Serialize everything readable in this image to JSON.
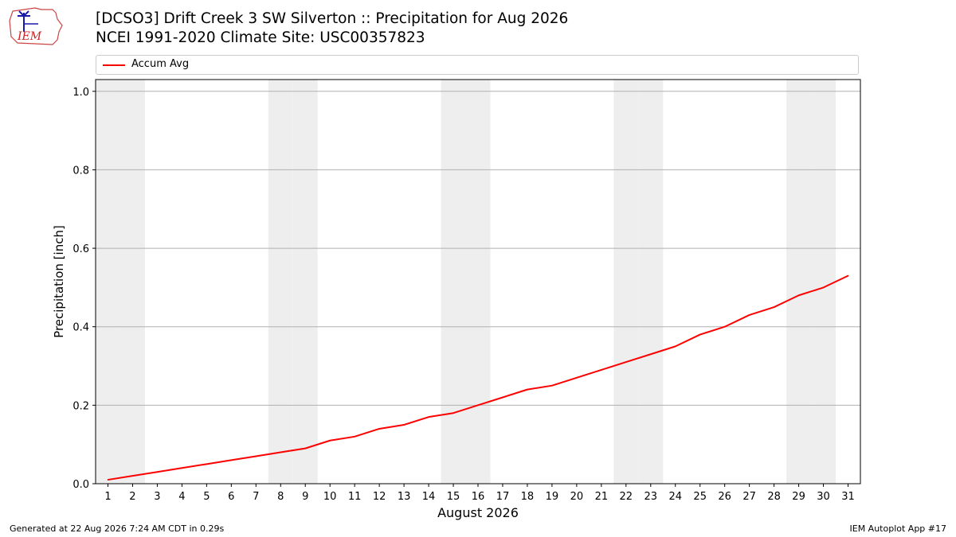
{
  "header": {
    "title_line1": "[DCSO3] Drift Creek 3 SW Silverton :: Precipitation for Aug 2026",
    "title_line2": "NCEI 1991-2020 Climate Site: USC00357823",
    "logo_text": "IEM"
  },
  "footer": {
    "generated": "Generated at 22 Aug 2026 7:24 AM CDT in 0.29s",
    "app": "IEM Autoplot App #17"
  },
  "colors": {
    "line": "#ff0000",
    "weekend_band": "#eeeeee",
    "grid": "#b0b0b0"
  },
  "chart_data": {
    "type": "line",
    "xlabel": "August 2026",
    "ylabel": "Precipitation [inch]",
    "ylim": [
      0,
      1.03
    ],
    "xlim": [
      0.5,
      31.5
    ],
    "yticks": [
      "0.0",
      "0.2",
      "0.4",
      "0.6",
      "0.8",
      "1.0"
    ],
    "x": [
      1,
      2,
      3,
      4,
      5,
      6,
      7,
      8,
      9,
      10,
      11,
      12,
      13,
      14,
      15,
      16,
      17,
      18,
      19,
      20,
      21,
      22,
      23,
      24,
      25,
      26,
      27,
      28,
      29,
      30,
      31
    ],
    "xtick_labels": [
      "1",
      "2",
      "3",
      "4",
      "5",
      "6",
      "7",
      "8",
      "9",
      "10",
      "11",
      "12",
      "13",
      "14",
      "15",
      "16",
      "17",
      "18",
      "19",
      "20",
      "21",
      "22",
      "23",
      "24",
      "25",
      "26",
      "27",
      "28",
      "29",
      "30",
      "31"
    ],
    "weekend_days": [
      1,
      2,
      8,
      9,
      15,
      16,
      22,
      23,
      29,
      30
    ],
    "grid": "horizontal",
    "legend_position": "top",
    "series": [
      {
        "name": "Accum Avg",
        "values": [
          0.01,
          0.02,
          0.03,
          0.04,
          0.05,
          0.06,
          0.07,
          0.08,
          0.09,
          0.11,
          0.12,
          0.14,
          0.15,
          0.17,
          0.18,
          0.2,
          0.22,
          0.24,
          0.25,
          0.27,
          0.29,
          0.31,
          0.33,
          0.35,
          0.38,
          0.4,
          0.43,
          0.45,
          0.48,
          0.5,
          0.53
        ]
      }
    ]
  }
}
